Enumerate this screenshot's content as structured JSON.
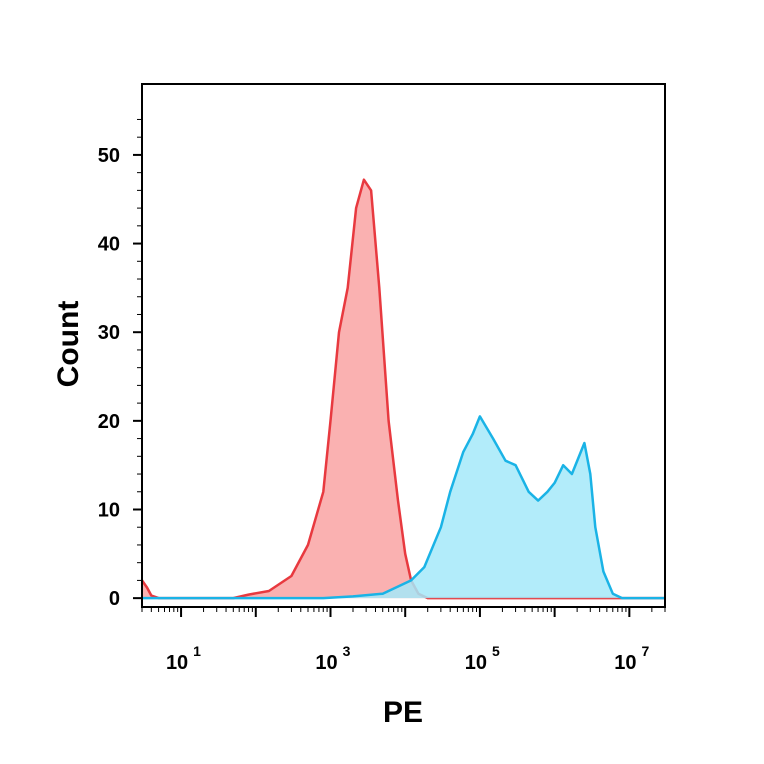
{
  "chart_data": {
    "type": "area",
    "xlabel": "PE",
    "ylabel": "Count",
    "x_scale": "log",
    "xlim": [
      3,
      30000000
    ],
    "ylim": [
      -1,
      58
    ],
    "x_ticks": [
      {
        "value": 10,
        "base": "10",
        "exp": "1"
      },
      {
        "value": 1000,
        "base": "10",
        "exp": "3"
      },
      {
        "value": 100000,
        "base": "10",
        "exp": "5"
      },
      {
        "value": 10000000,
        "base": "10",
        "exp": "7"
      }
    ],
    "y_ticks": [
      0,
      10,
      20,
      30,
      40,
      50
    ],
    "series": [
      {
        "color": "#e8393f",
        "fill": "#f9a3a3",
        "points": [
          [
            3,
            2
          ],
          [
            3.5,
            1.2
          ],
          [
            4,
            0.3
          ],
          [
            5,
            0
          ],
          [
            50,
            0
          ],
          [
            80,
            0.4
          ],
          [
            150,
            0.8
          ],
          [
            300,
            2.5
          ],
          [
            500,
            6
          ],
          [
            800,
            12
          ],
          [
            1000,
            20
          ],
          [
            1300,
            30
          ],
          [
            1700,
            35
          ],
          [
            2200,
            44
          ],
          [
            2800,
            47.2
          ],
          [
            3500,
            46
          ],
          [
            4500,
            35
          ],
          [
            6000,
            20
          ],
          [
            8000,
            11
          ],
          [
            10000,
            5
          ],
          [
            12000,
            2
          ],
          [
            15000,
            0.5
          ],
          [
            20000,
            0
          ],
          [
            30000000,
            0
          ]
        ]
      },
      {
        "color": "#1ab3e6",
        "fill": "#a5e9f9",
        "points": [
          [
            3,
            0
          ],
          [
            800,
            0
          ],
          [
            2000,
            0.2
          ],
          [
            5000,
            0.5
          ],
          [
            12000,
            2
          ],
          [
            18000,
            3.5
          ],
          [
            30000,
            8
          ],
          [
            40000,
            12
          ],
          [
            60000,
            16.5
          ],
          [
            80000,
            18.5
          ],
          [
            100000,
            20.5
          ],
          [
            150000,
            18
          ],
          [
            220000,
            15.5
          ],
          [
            300000,
            15
          ],
          [
            450000,
            12
          ],
          [
            600000,
            11
          ],
          [
            800000,
            12
          ],
          [
            1000000,
            13
          ],
          [
            1300000,
            15
          ],
          [
            1700000,
            14
          ],
          [
            2500000,
            17.5
          ],
          [
            3000000,
            14
          ],
          [
            3500000,
            8
          ],
          [
            4500000,
            3
          ],
          [
            6000000,
            0.5
          ],
          [
            8000000,
            0
          ],
          [
            30000000,
            0
          ]
        ]
      }
    ]
  }
}
